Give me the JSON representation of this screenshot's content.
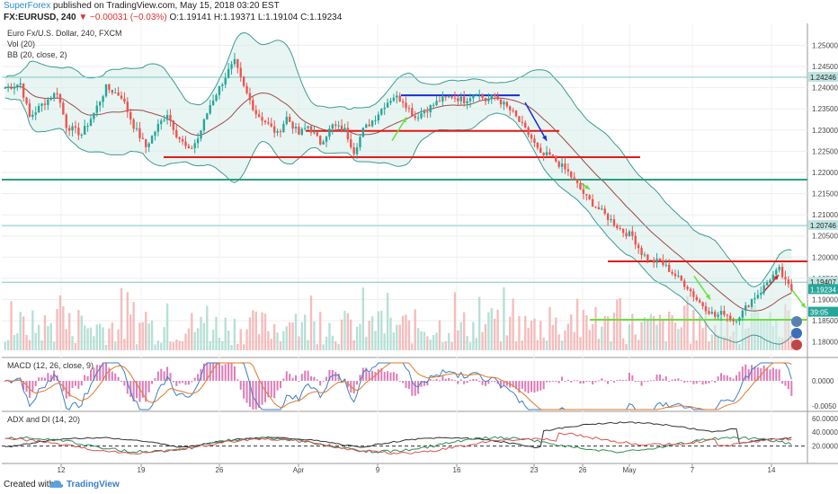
{
  "header": {
    "publisher": "SuperForex",
    "published_text": "published on TradingView.com, May 15, 2018 03:20 EST",
    "symbol": "FX:EURUSD, 240",
    "change": "▼ −0.00031 (−0.03%)",
    "ohlc": "O:1.19141 H:1.19371 L:1.19104 C:1.19234"
  },
  "footer": {
    "created_with": "Created with",
    "brand": "TradingView"
  },
  "colors": {
    "up": "#26a69a",
    "down": "#ef5350",
    "bb": "#3f9a94",
    "ma": "#9e4a4a",
    "red_line": "#e01b1b",
    "blue_line": "#1a2bd6",
    "green_line": "#6ae03a",
    "teal_line": "#28a07e",
    "macd": "#3d7fc6",
    "signal": "#e07a2a",
    "hist": "#d45ea8"
  },
  "chart_data": [
    {
      "type": "candlestick",
      "title": "Euro Fx/U.S. Dollar, 240, FXCM",
      "studies": [
        "Vol (20)",
        "BB (20, close, 2)"
      ],
      "x_tick_labels": [
        "12",
        "19",
        "26",
        "Apr",
        "9",
        "16",
        "23",
        "26",
        "May",
        "7",
        "14"
      ],
      "y_tick_labels": [
        "1.25000",
        "1.24500",
        "1.24000",
        "1.23500",
        "1.23000",
        "1.22500",
        "1.22000",
        "1.21500",
        "1.21000",
        "1.20500",
        "1.20000",
        "1.19500",
        "1.19000",
        "1.18500",
        "1.18000"
      ],
      "ylim": [
        1.178,
        1.2535
      ],
      "close_path": [
        [
          0,
          1.24
        ],
        [
          5,
          1.241
        ],
        [
          8,
          1.233
        ],
        [
          12,
          1.236
        ],
        [
          17,
          1.239
        ],
        [
          20,
          1.231
        ],
        [
          25,
          1.229
        ],
        [
          29,
          1.234
        ],
        [
          33,
          1.24
        ],
        [
          38,
          1.238
        ],
        [
          42,
          1.231
        ],
        [
          46,
          1.226
        ],
        [
          50,
          1.231
        ],
        [
          53,
          1.234
        ],
        [
          56,
          1.229
        ],
        [
          60,
          1.225
        ],
        [
          63,
          1.228
        ],
        [
          67,
          1.236
        ],
        [
          70,
          1.24
        ],
        [
          73,
          1.244
        ],
        [
          75,
          1.246
        ],
        [
          78,
          1.24
        ],
        [
          82,
          1.234
        ],
        [
          85,
          1.232
        ],
        [
          89,
          1.229
        ],
        [
          92,
          1.233
        ],
        [
          96,
          1.229
        ],
        [
          99,
          1.231
        ],
        [
          103,
          1.227
        ],
        [
          107,
          1.231
        ],
        [
          111,
          1.23
        ],
        [
          114,
          1.225
        ],
        [
          117,
          1.23
        ],
        [
          121,
          1.233
        ],
        [
          124,
          1.236
        ],
        [
          127,
          1.238
        ],
        [
          130,
          1.237
        ],
        [
          134,
          1.233
        ],
        [
          138,
          1.235
        ],
        [
          142,
          1.237
        ],
        [
          146,
          1.238
        ],
        [
          150,
          1.237
        ],
        [
          154,
          1.239
        ],
        [
          157,
          1.237
        ],
        [
          160,
          1.238
        ],
        [
          163,
          1.236
        ],
        [
          166,
          1.234
        ],
        [
          169,
          1.231
        ],
        [
          172,
          1.228
        ],
        [
          175,
          1.224
        ],
        [
          178,
          1.224
        ],
        [
          181,
          1.222
        ],
        [
          184,
          1.22
        ],
        [
          187,
          1.217
        ],
        [
          190,
          1.214
        ],
        [
          193,
          1.212
        ],
        [
          196,
          1.21
        ],
        [
          199,
          1.208
        ],
        [
          202,
          1.206
        ],
        [
          205,
          1.205
        ],
        [
          208,
          1.201
        ],
        [
          211,
          1.199
        ],
        [
          214,
          1.199
        ],
        [
          217,
          1.197
        ],
        [
          220,
          1.195
        ],
        [
          223,
          1.193
        ],
        [
          226,
          1.19
        ],
        [
          229,
          1.188
        ],
        [
          232,
          1.186
        ],
        [
          235,
          1.187
        ],
        [
          238,
          1.185
        ],
        [
          241,
          1.187
        ],
        [
          244,
          1.19
        ],
        [
          247,
          1.192
        ],
        [
          250,
          1.195
        ],
        [
          253,
          1.197
        ],
        [
          255,
          1.194
        ],
        [
          257,
          1.1923
        ]
      ],
      "horizontal_lines": [
        {
          "price": 1.24246,
          "label": "1.24246"
        },
        {
          "price": 1.20746,
          "label": "1.20746"
        },
        {
          "price": 1.19407,
          "label": "1.19407"
        },
        {
          "price": 1.19234,
          "label": "1.19234"
        },
        {
          "price": 1.187,
          "label": "39:05"
        }
      ]
    },
    {
      "type": "line",
      "title": "MACD (12, 26, close, 9)",
      "y_tick_labels": [
        "0.0000",
        "-0.0050"
      ],
      "series": [
        {
          "name": "MACD"
        },
        {
          "name": "Signal"
        },
        {
          "name": "Histogram"
        }
      ]
    },
    {
      "type": "line",
      "title": "ADX and DI (14, 20)",
      "y_tick_labels": [
        "60.0000",
        "40.0000",
        "20.0000"
      ],
      "series": [
        {
          "name": "ADX"
        },
        {
          "name": "+DI"
        },
        {
          "name": "-DI"
        }
      ]
    }
  ]
}
